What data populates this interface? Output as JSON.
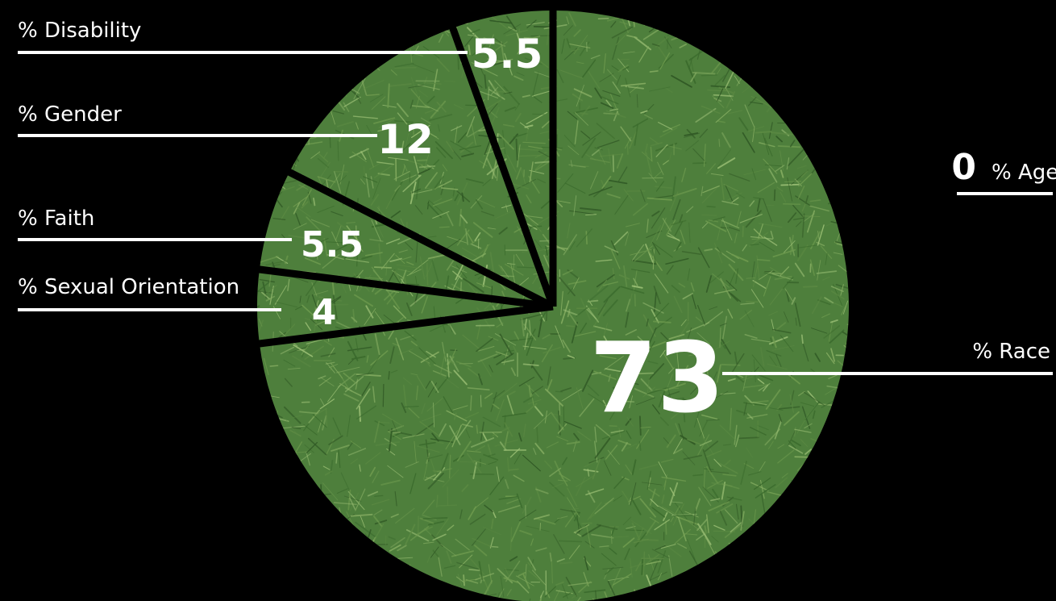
{
  "chart_data": {
    "type": "pie",
    "unit": "%",
    "slices": [
      {
        "label": "% Race",
        "value": 73,
        "value_label": "73"
      },
      {
        "label": "% Sexual Orientation",
        "value": 4,
        "value_label": "4"
      },
      {
        "label": "% Faith",
        "value": 5.5,
        "value_label": "5.5"
      },
      {
        "label": "% Gender",
        "value": 12,
        "value_label": "12"
      },
      {
        "label": "% Disability",
        "value": 5.5,
        "value_label": "5.5"
      },
      {
        "label": "% Age",
        "value": 0,
        "value_label": "0"
      }
    ],
    "colors": {
      "background": "#000000",
      "slice_fill": "#4e7f3c",
      "slice_texture": "grass",
      "separator": "#000000",
      "text": "#ffffff"
    }
  }
}
